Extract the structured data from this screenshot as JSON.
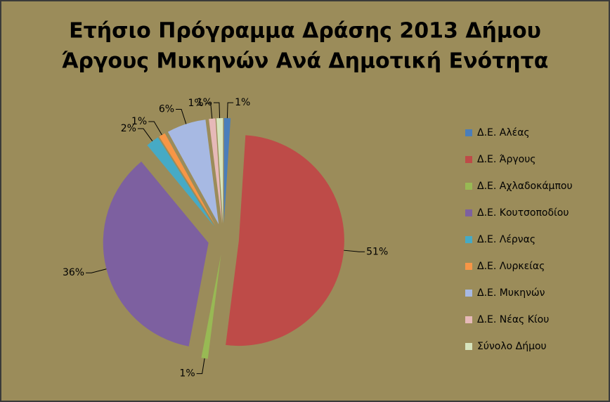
{
  "chart_data": {
    "type": "pie",
    "title": [
      "Ετήσιο Πρόγραμμα Δράσης 2013 Δήμου",
      "Άργους Μυκηνών Ανά Δημοτική Ενότητα"
    ],
    "categories": [
      "Δ.Ε. Αλέας",
      "Δ.Ε. Άργους",
      "Δ.Ε. Αχλαδοκάμπου",
      "Δ.Ε. Κουτσοποδίου",
      "Δ.Ε. Λέρνας",
      "Δ.Ε. Λυρκείας",
      "Δ.Ε. Μυκηνών",
      "Δ.Ε. Νέας Κίου",
      "Σύνολο Δήμου"
    ],
    "values": [
      1,
      51,
      1,
      36,
      2,
      1,
      6,
      1,
      1
    ],
    "value_labels": [
      "1%",
      "51%",
      "1%",
      "36%",
      "2%",
      "1%",
      "6%",
      "1%",
      "1%"
    ],
    "colors": [
      "#4a7ebb",
      "#be4b48",
      "#98b954",
      "#7d60a0",
      "#46aac5",
      "#f79646",
      "#a7b9e3",
      "#e6b9b8",
      "#d7e4bd"
    ],
    "legend": "right"
  }
}
